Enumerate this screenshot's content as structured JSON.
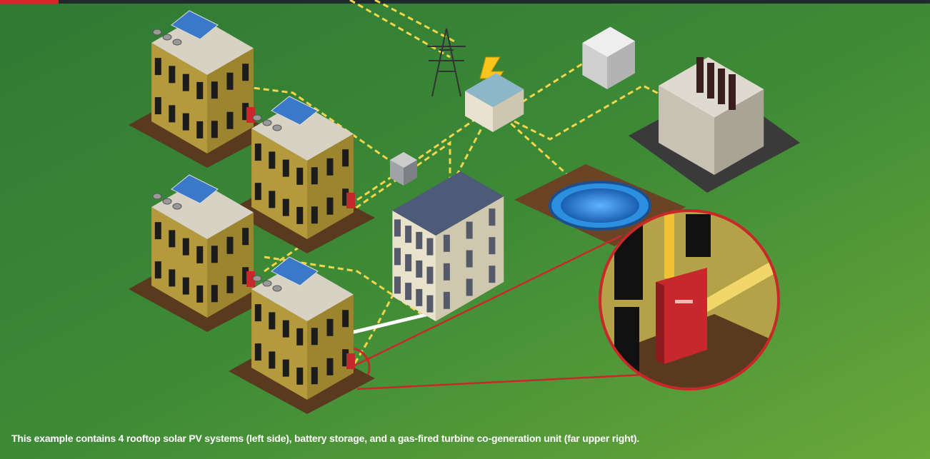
{
  "caption": "This example contains 4 rooftop solar PV systems (left side), battery storage, and a gas-fired turbine co-generation unit (far upper right)."
}
